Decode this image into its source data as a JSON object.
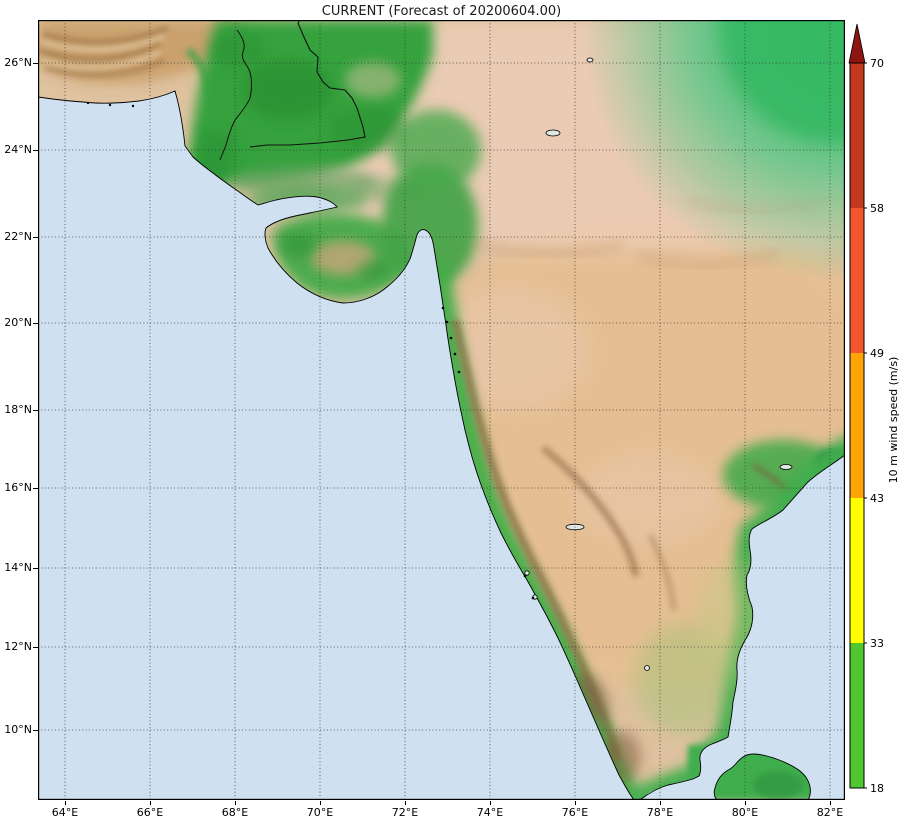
{
  "title": "CURRENT (Forecast of 20200604.00)",
  "map": {
    "x_ticks": [
      "64°E",
      "66°E",
      "68°E",
      "70°E",
      "72°E",
      "74°E",
      "76°E",
      "78°E",
      "80°E",
      "82°E"
    ],
    "y_ticks": [
      "26°N",
      "24°N",
      "22°N",
      "20°N",
      "18°N",
      "16°N",
      "14°N",
      "12°N",
      "10°N"
    ]
  },
  "colorbar": {
    "label": "10 m wind speed (m/s)",
    "tick_values": [
      "70",
      "58",
      "49",
      "43",
      "33",
      "18"
    ],
    "segments": [
      {
        "from": 18,
        "to": 33,
        "color": "#4fc82f"
      },
      {
        "from": 33,
        "to": 43,
        "color": "#ffff00"
      },
      {
        "from": 43,
        "to": 49,
        "color": "#ffa405"
      },
      {
        "from": 49,
        "to": 58,
        "color": "#f2562a"
      },
      {
        "from": 58,
        "to": 70,
        "color": "#c3391d"
      }
    ],
    "arrow_color": "#8c1511"
  },
  "colors": {
    "sea": "#cfe1f0",
    "land_base": "#dfc2a0",
    "plains_green": "#35a23c",
    "coast_green": "#3fae4a",
    "emerald": "#3fbf6e",
    "deccan": "#e7bf90",
    "ghats_brown": "#8d6745",
    "makran_tan": "#c9a06a",
    "grid": "#2b2b2b"
  },
  "chart_data": {
    "type": "heatmap",
    "title": "CURRENT (Forecast of 20200604.00)",
    "colorbar_label": "10 m wind speed (m/s)",
    "colorbar_levels": [
      18,
      33,
      43,
      49,
      58,
      70
    ],
    "colorbar_colors": [
      "#4fc82f",
      "#ffff00",
      "#ffa405",
      "#f2562a",
      "#c3391d"
    ],
    "x_range_deg_east": [
      63.4,
      82.4
    ],
    "y_range_deg_north": [
      9.3,
      26.9
    ],
    "x_tick_values": [
      64,
      66,
      68,
      70,
      72,
      74,
      76,
      78,
      80,
      82
    ],
    "y_tick_values": [
      26,
      24,
      22,
      20,
      18,
      16,
      14,
      12,
      10
    ],
    "grid": "dotted"
  }
}
